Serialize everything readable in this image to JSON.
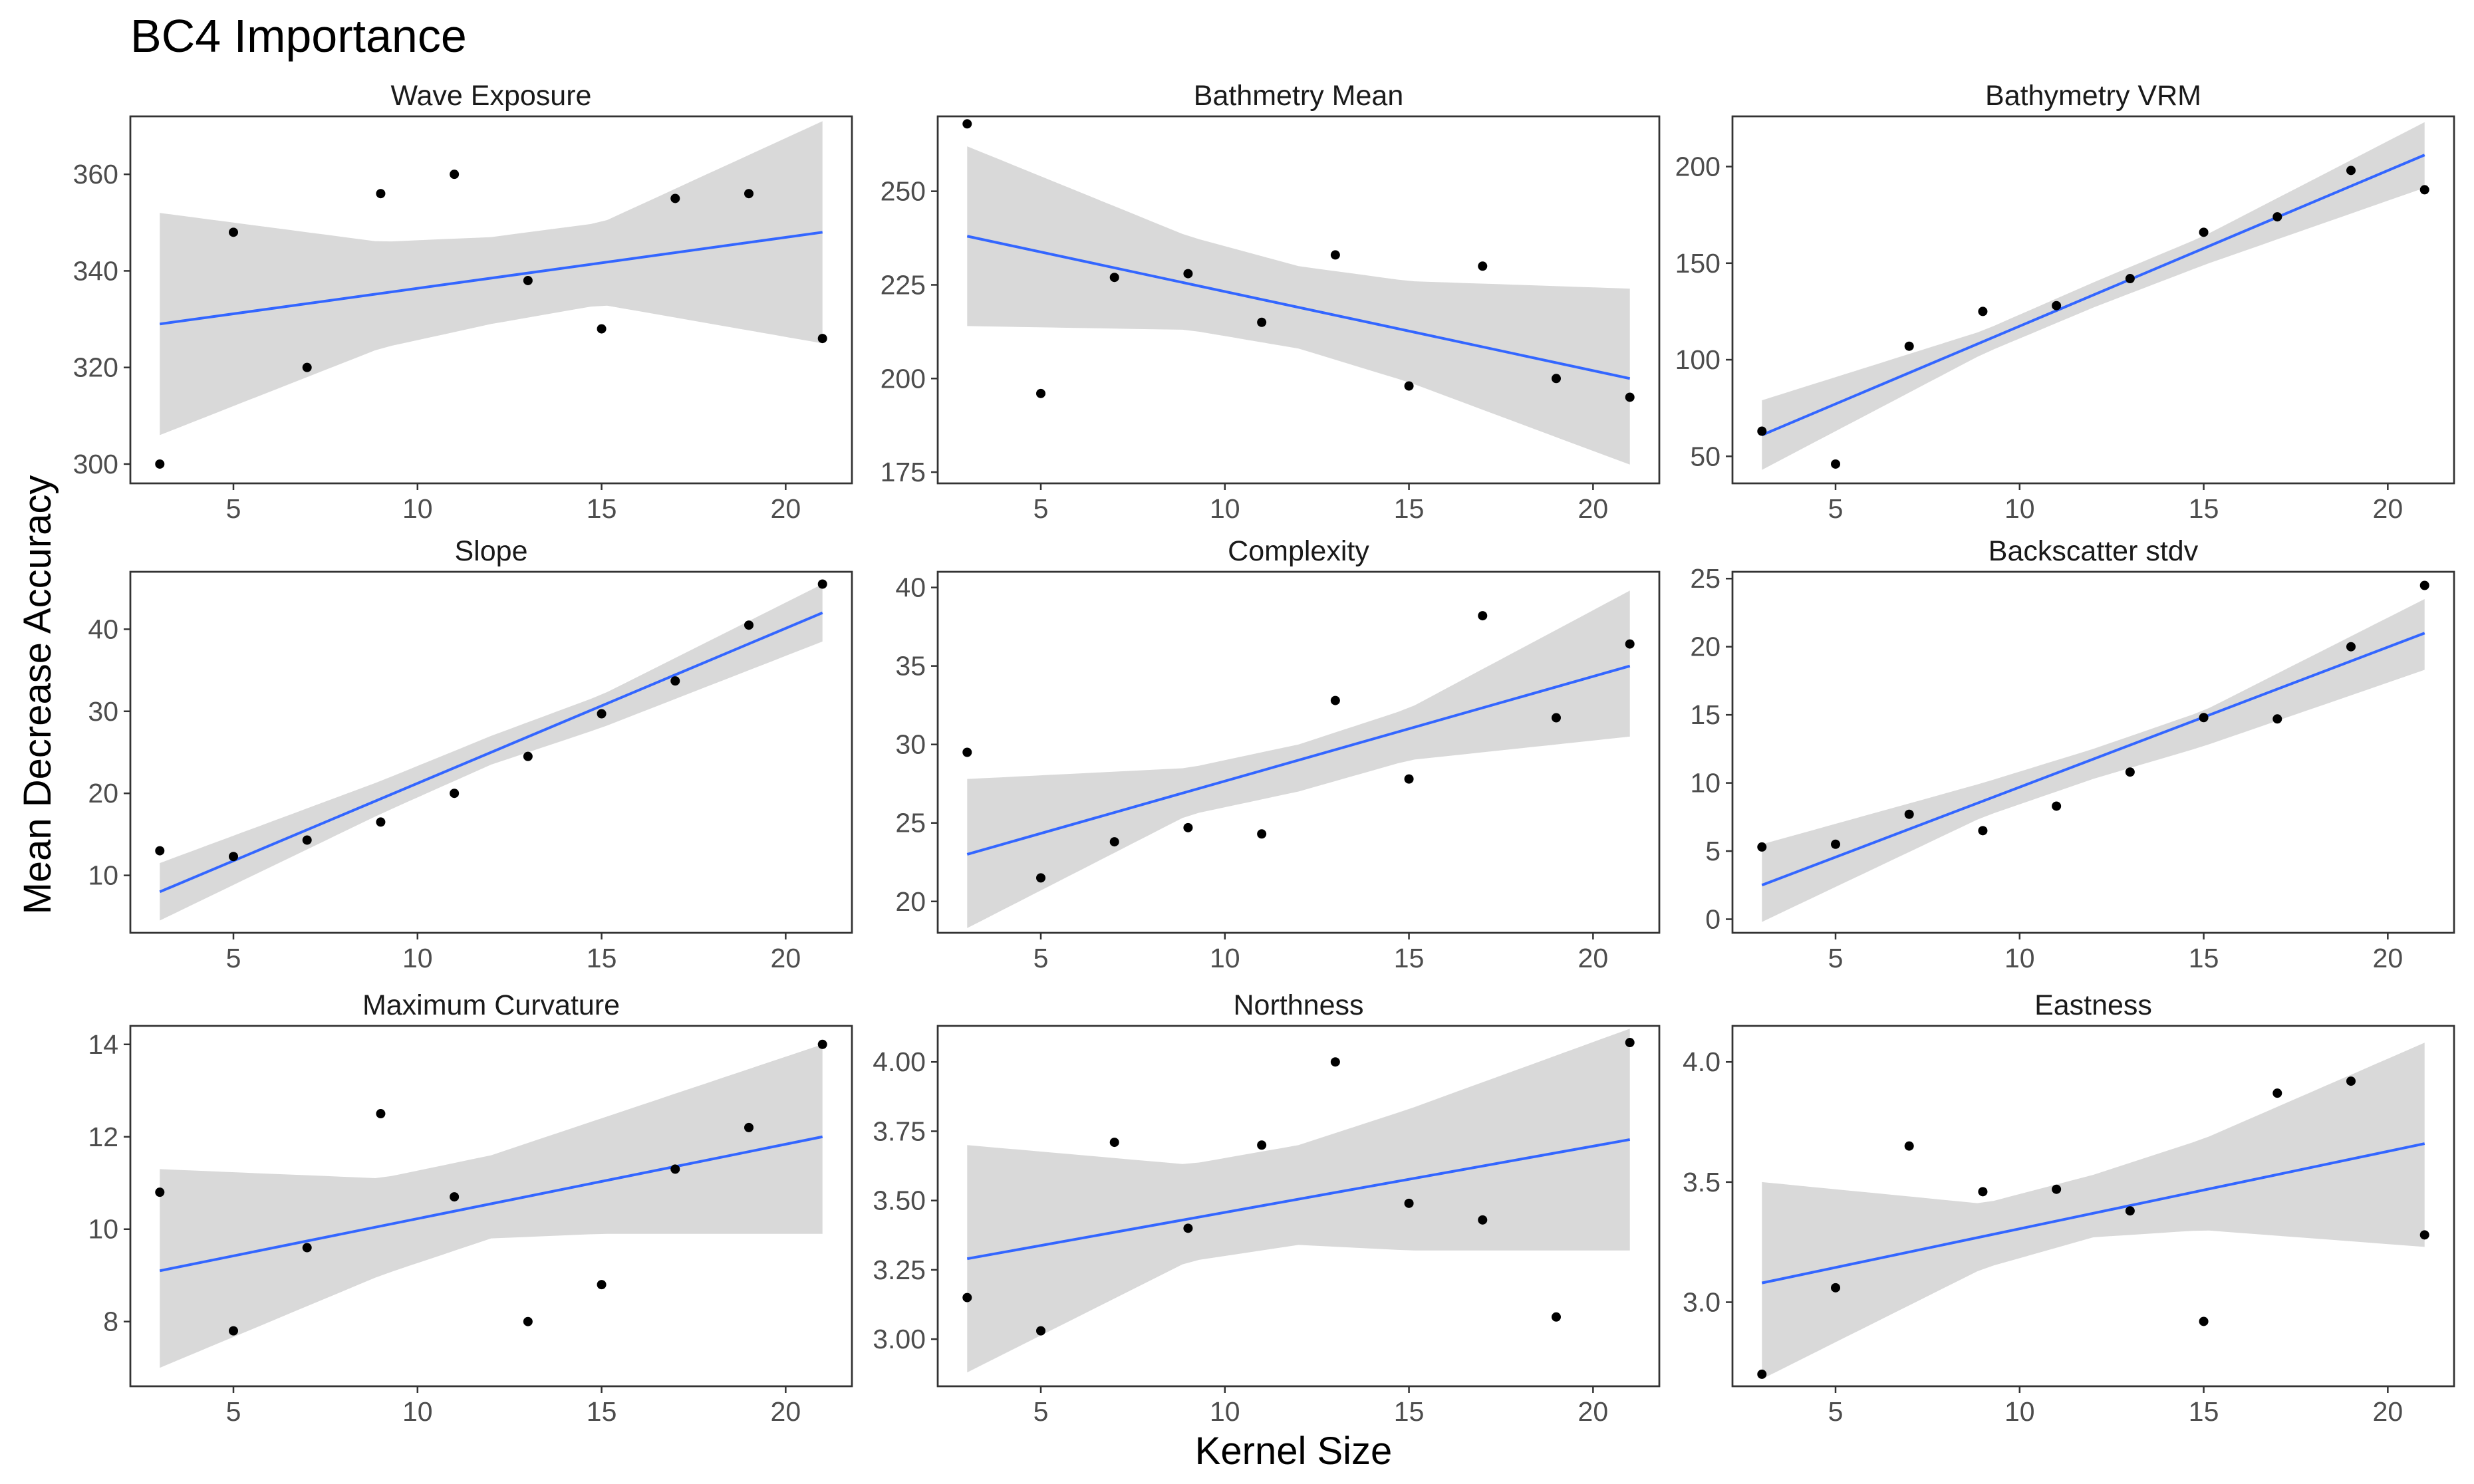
{
  "title": "BC4 Importance",
  "xlabel": "Kernel Size",
  "ylabel": "Mean Decrease Accuracy",
  "colors": {
    "line": "#3366ff",
    "band": "#d9d9d9",
    "point": "#000000",
    "frame": "#333333"
  },
  "chart_data": [
    {
      "type": "scatter",
      "title": "Wave Exposure",
      "x": [
        3,
        5,
        7,
        9,
        11,
        13,
        15,
        17,
        19,
        21
      ],
      "y": [
        300,
        348,
        320,
        356,
        360,
        338,
        328,
        355,
        356,
        326
      ],
      "xlim": [
        2.2,
        21.8
      ],
      "ylim": [
        296,
        372
      ],
      "xticks": [
        5,
        10,
        15,
        20
      ],
      "xtick_labels": [
        "5",
        "10",
        "15",
        "20"
      ],
      "yticks": [
        300,
        320,
        340,
        360
      ],
      "ytick_labels": [
        "300",
        "320",
        "340",
        "360"
      ],
      "fit": {
        "x": [
          3,
          21
        ],
        "y": [
          329,
          348
        ]
      },
      "ci": {
        "x": [
          3,
          9,
          12,
          15,
          21
        ],
        "upper": [
          352,
          346,
          347,
          350,
          371
        ],
        "lower": [
          306,
          324,
          329,
          333,
          325
        ]
      }
    },
    {
      "type": "scatter",
      "title": "Bathmetry Mean",
      "x": [
        3,
        5,
        7,
        9,
        11,
        13,
        15,
        17,
        19,
        21
      ],
      "y": [
        268,
        196,
        227,
        228,
        215,
        233,
        198,
        230,
        200,
        195
      ],
      "xlim": [
        2.2,
        21.8
      ],
      "ylim": [
        172,
        270
      ],
      "xticks": [
        5,
        10,
        15,
        20
      ],
      "xtick_labels": [
        "5",
        "10",
        "15",
        "20"
      ],
      "yticks": [
        175,
        200,
        225,
        250
      ],
      "ytick_labels": [
        "175",
        "200",
        "225",
        "250"
      ],
      "fit": {
        "x": [
          3,
          21
        ],
        "y": [
          238,
          200
        ]
      },
      "ci": {
        "x": [
          3,
          9,
          12,
          15,
          21
        ],
        "upper": [
          262,
          238,
          230,
          226,
          224
        ],
        "lower": [
          214,
          213,
          208,
          199,
          177
        ]
      }
    },
    {
      "type": "scatter",
      "title": "Bathymetry VRM",
      "x": [
        3,
        5,
        7,
        9,
        11,
        13,
        15,
        17,
        19,
        21
      ],
      "y": [
        63,
        46,
        107,
        125,
        128,
        142,
        166,
        174,
        198,
        188
      ],
      "xlim": [
        2.2,
        21.8
      ],
      "ylim": [
        36,
        226
      ],
      "xticks": [
        5,
        10,
        15,
        20
      ],
      "xtick_labels": [
        "5",
        "10",
        "15",
        "20"
      ],
      "yticks": [
        50,
        100,
        150,
        200
      ],
      "ytick_labels": [
        "50",
        "100",
        "150",
        "200"
      ],
      "fit": {
        "x": [
          3,
          21
        ],
        "y": [
          61,
          206
        ]
      },
      "ci": {
        "x": [
          3,
          9,
          12,
          15,
          21
        ],
        "upper": [
          79,
          115,
          140,
          164,
          223
        ],
        "lower": [
          43,
          103,
          127,
          149,
          189
        ]
      }
    },
    {
      "type": "scatter",
      "title": "Slope",
      "x": [
        3,
        5,
        7,
        9,
        11,
        13,
        15,
        17,
        19,
        21
      ],
      "y": [
        13,
        12.3,
        14.3,
        16.5,
        20,
        24.5,
        29.7,
        33.7,
        40.5,
        45.5
      ],
      "xlim": [
        2.2,
        21.8
      ],
      "ylim": [
        3,
        47
      ],
      "xticks": [
        5,
        10,
        15,
        20
      ],
      "xtick_labels": [
        "5",
        "10",
        "15",
        "20"
      ],
      "yticks": [
        10,
        20,
        30,
        40
      ],
      "ytick_labels": [
        "10",
        "20",
        "30",
        "40"
      ],
      "fit": {
        "x": [
          3,
          21
        ],
        "y": [
          8,
          42
        ]
      },
      "ci": {
        "x": [
          3,
          9,
          12,
          15,
          21
        ],
        "upper": [
          11.5,
          21.5,
          27,
          32,
          45.5
        ],
        "lower": [
          4.5,
          17.5,
          23.5,
          28,
          38.5
        ]
      }
    },
    {
      "type": "scatter",
      "title": "Complexity",
      "x": [
        3,
        5,
        7,
        9,
        11,
        13,
        15,
        17,
        19,
        21
      ],
      "y": [
        29.5,
        21.5,
        23.8,
        24.7,
        24.3,
        32.8,
        27.8,
        38.2,
        31.7,
        36.4
      ],
      "xlim": [
        2.2,
        21.8
      ],
      "ylim": [
        18,
        41
      ],
      "xticks": [
        5,
        10,
        15,
        20
      ],
      "xtick_labels": [
        "5",
        "10",
        "15",
        "20"
      ],
      "yticks": [
        20,
        25,
        30,
        35,
        40
      ],
      "ytick_labels": [
        "20",
        "25",
        "30",
        "35",
        "40"
      ],
      "fit": {
        "x": [
          3,
          21
        ],
        "y": [
          23,
          35
        ]
      },
      "ci": {
        "x": [
          3,
          9,
          12,
          15,
          21
        ],
        "upper": [
          27.8,
          28.5,
          30,
          32.3,
          39.8
        ],
        "lower": [
          18.3,
          25.5,
          27,
          29,
          30.5
        ]
      }
    },
    {
      "type": "scatter",
      "title": "Backscatter stdv",
      "x": [
        3,
        5,
        7,
        9,
        11,
        13,
        15,
        17,
        19,
        21
      ],
      "y": [
        5.3,
        5.5,
        7.7,
        6.5,
        8.3,
        10.8,
        14.8,
        14.7,
        20,
        24.5
      ],
      "xlim": [
        2.2,
        21.8
      ],
      "ylim": [
        -1,
        25.5
      ],
      "xticks": [
        5,
        10,
        15,
        20
      ],
      "xtick_labels": [
        "5",
        "10",
        "15",
        "20"
      ],
      "yticks": [
        0,
        5,
        10,
        15,
        20,
        25
      ],
      "ytick_labels": [
        "0",
        "5",
        "10",
        "15",
        "20",
        "25"
      ],
      "fit": {
        "x": [
          3,
          21
        ],
        "y": [
          2.5,
          21
        ]
      },
      "ci": {
        "x": [
          3,
          9,
          12,
          15,
          21
        ],
        "upper": [
          5.5,
          10,
          12.5,
          15.3,
          23.5
        ],
        "lower": [
          -0.2,
          7.5,
          10.3,
          12.7,
          18.3
        ]
      }
    },
    {
      "type": "scatter",
      "title": "Maximum Curvature",
      "x": [
        3,
        5,
        7,
        9,
        11,
        13,
        15,
        17,
        19,
        21
      ],
      "y": [
        10.8,
        7.8,
        9.6,
        12.5,
        10.7,
        8.0,
        8.8,
        11.3,
        12.2,
        14.0
      ],
      "xlim": [
        2.2,
        21.8
      ],
      "ylim": [
        6.6,
        14.4
      ],
      "xticks": [
        5,
        10,
        15,
        20
      ],
      "xtick_labels": [
        "5",
        "10",
        "15",
        "20"
      ],
      "yticks": [
        8,
        10,
        12,
        14
      ],
      "ytick_labels": [
        "8",
        "10",
        "12",
        "14"
      ],
      "fit": {
        "x": [
          3,
          21
        ],
        "y": [
          9.1,
          12.0
        ]
      },
      "ci": {
        "x": [
          3,
          9,
          12,
          15,
          21
        ],
        "upper": [
          11.3,
          11.1,
          11.6,
          12.4,
          14.0
        ],
        "lower": [
          7.0,
          9.0,
          9.8,
          9.9,
          9.9
        ]
      }
    },
    {
      "type": "scatter",
      "title": "Northness",
      "x": [
        3,
        5,
        7,
        9,
        11,
        13,
        15,
        17,
        19,
        21
      ],
      "y": [
        3.15,
        3.03,
        3.71,
        3.4,
        3.7,
        4.0,
        3.49,
        3.43,
        3.08,
        4.07
      ],
      "xlim": [
        2.2,
        21.8
      ],
      "ylim": [
        2.83,
        4.13
      ],
      "xticks": [
        5,
        10,
        15,
        20
      ],
      "xtick_labels": [
        "5",
        "10",
        "15",
        "20"
      ],
      "yticks": [
        3.0,
        3.25,
        3.5,
        3.75,
        4.0
      ],
      "ytick_labels": [
        "3.00",
        "3.25",
        "3.50",
        "3.75",
        "4.00"
      ],
      "fit": {
        "x": [
          3,
          21
        ],
        "y": [
          3.29,
          3.72
        ]
      },
      "ci": {
        "x": [
          3,
          9,
          12,
          15,
          21
        ],
        "upper": [
          3.7,
          3.63,
          3.7,
          3.83,
          4.12
        ],
        "lower": [
          2.88,
          3.28,
          3.34,
          3.32,
          3.32
        ]
      }
    },
    {
      "type": "scatter",
      "title": "Eastness",
      "x": [
        3,
        5,
        7,
        9,
        11,
        13,
        15,
        17,
        19,
        21
      ],
      "y": [
        2.7,
        3.06,
        3.65,
        3.46,
        3.47,
        3.38,
        2.92,
        3.87,
        3.92,
        3.28
      ],
      "xlim": [
        2.2,
        21.8
      ],
      "ylim": [
        2.65,
        4.15
      ],
      "xticks": [
        5,
        10,
        15,
        20
      ],
      "xtick_labels": [
        "5",
        "10",
        "15",
        "20"
      ],
      "yticks": [
        3.0,
        3.5,
        4.0
      ],
      "ytick_labels": [
        "3.0",
        "3.5",
        "4.0"
      ],
      "fit": {
        "x": [
          3,
          21
        ],
        "y": [
          3.08,
          3.66
        ]
      },
      "ci": {
        "x": [
          3,
          9,
          12,
          15,
          21
        ],
        "upper": [
          3.5,
          3.41,
          3.53,
          3.68,
          4.08
        ],
        "lower": [
          2.68,
          3.14,
          3.27,
          3.3,
          3.23
        ]
      }
    }
  ]
}
